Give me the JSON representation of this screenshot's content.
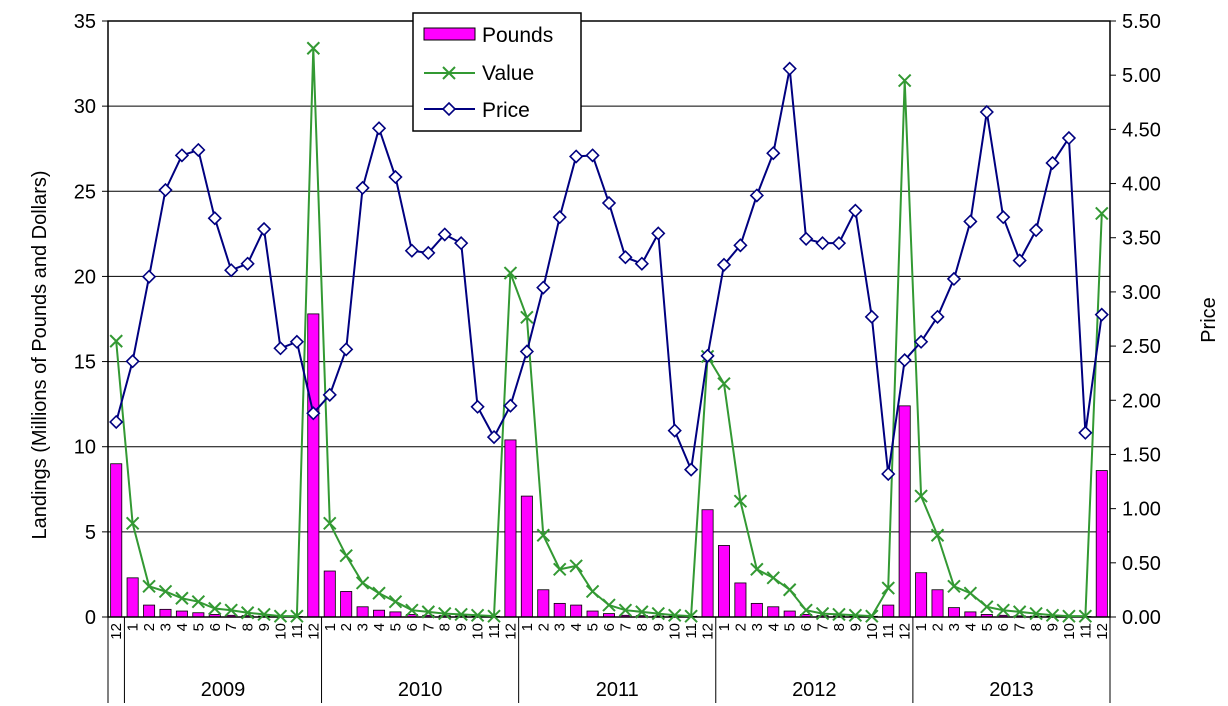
{
  "chart_data": {
    "type": "bar",
    "title": "",
    "ylabel": "Landings (Millions of Pounds and Dollars)",
    "y2label": "Price",
    "ylim": [
      0,
      35
    ],
    "y2lim": [
      0,
      5.5
    ],
    "yticks": [
      "0",
      "5",
      "10",
      "15",
      "20",
      "25",
      "30",
      "35"
    ],
    "y2ticks": [
      "0.00",
      "0.50",
      "1.00",
      "1.50",
      "2.00",
      "2.50",
      "3.00",
      "3.50",
      "4.00",
      "4.50",
      "5.00",
      "5.50"
    ],
    "grid": true,
    "legend_position": "top-center",
    "categories": [
      "12",
      "1",
      "2",
      "3",
      "4",
      "5",
      "6",
      "7",
      "8",
      "9",
      "10",
      "11",
      "12",
      "1",
      "2",
      "3",
      "4",
      "5",
      "6",
      "7",
      "8",
      "9",
      "10",
      "11",
      "12",
      "1",
      "2",
      "3",
      "4",
      "5",
      "6",
      "7",
      "8",
      "9",
      "10",
      "11",
      "12",
      "1",
      "2",
      "3",
      "4",
      "5",
      "6",
      "7",
      "8",
      "9",
      "10",
      "11",
      "12",
      "1",
      "2",
      "3",
      "4",
      "5",
      "6",
      "7",
      "8",
      "9",
      "10",
      "11",
      "12"
    ],
    "years": [
      {
        "label": "2009",
        "start": 1,
        "end": 12
      },
      {
        "label": "2010",
        "start": 13,
        "end": 24
      },
      {
        "label": "2011",
        "start": 25,
        "end": 36
      },
      {
        "label": "2012",
        "start": 37,
        "end": 48
      },
      {
        "label": "2013",
        "start": 49,
        "end": 60
      }
    ],
    "series": [
      {
        "name": "Pounds",
        "kind": "bar",
        "axis": "left",
        "color": "#ff00ff",
        "values": [
          9.0,
          2.3,
          0.7,
          0.45,
          0.35,
          0.25,
          0.15,
          0.1,
          0.08,
          0.05,
          0.03,
          0.03,
          17.8,
          2.7,
          1.5,
          0.6,
          0.4,
          0.3,
          0.15,
          0.1,
          0.08,
          0.06,
          0.05,
          0.04,
          10.4,
          7.1,
          1.6,
          0.8,
          0.7,
          0.35,
          0.2,
          0.1,
          0.08,
          0.06,
          0.05,
          0.04,
          6.3,
          4.2,
          2.0,
          0.8,
          0.6,
          0.35,
          0.15,
          0.08,
          0.06,
          0.05,
          0.04,
          0.7,
          12.4,
          2.6,
          1.6,
          0.55,
          0.3,
          0.15,
          0.1,
          0.07,
          0.05,
          0.04,
          0.03,
          0.03,
          8.6
        ]
      },
      {
        "name": "Value",
        "kind": "line",
        "axis": "left",
        "color": "#339933",
        "values": [
          16.2,
          5.5,
          1.8,
          1.5,
          1.1,
          0.9,
          0.5,
          0.4,
          0.25,
          0.15,
          0.05,
          0.05,
          33.4,
          5.5,
          3.6,
          2.0,
          1.4,
          0.9,
          0.4,
          0.3,
          0.2,
          0.15,
          0.1,
          0.05,
          20.2,
          17.6,
          4.8,
          2.8,
          3.0,
          1.5,
          0.7,
          0.4,
          0.3,
          0.2,
          0.1,
          0.05,
          15.3,
          13.7,
          6.8,
          2.8,
          2.3,
          1.6,
          0.4,
          0.2,
          0.15,
          0.1,
          0.05,
          1.7,
          31.5,
          7.1,
          4.8,
          1.8,
          1.4,
          0.6,
          0.4,
          0.3,
          0.2,
          0.1,
          0.05,
          0.05,
          23.7
        ]
      },
      {
        "name": "Price",
        "kind": "line",
        "axis": "right",
        "color": "#000080",
        "values": [
          1.8,
          2.36,
          3.14,
          3.94,
          4.26,
          4.31,
          3.68,
          3.2,
          3.26,
          3.58,
          2.48,
          2.54,
          1.88,
          2.05,
          2.47,
          3.96,
          4.51,
          4.06,
          3.38,
          3.36,
          3.53,
          3.45,
          1.94,
          1.66,
          1.95,
          2.45,
          3.04,
          3.69,
          4.25,
          4.26,
          3.82,
          3.32,
          3.26,
          3.54,
          1.72,
          1.36,
          2.41,
          3.25,
          3.43,
          3.89,
          4.28,
          5.06,
          3.49,
          3.45,
          3.45,
          3.75,
          2.77,
          1.32,
          2.37,
          2.54,
          2.77,
          3.12,
          3.65,
          4.66,
          3.69,
          3.29,
          3.57,
          4.19,
          4.42,
          1.7,
          2.79
        ]
      }
    ]
  }
}
